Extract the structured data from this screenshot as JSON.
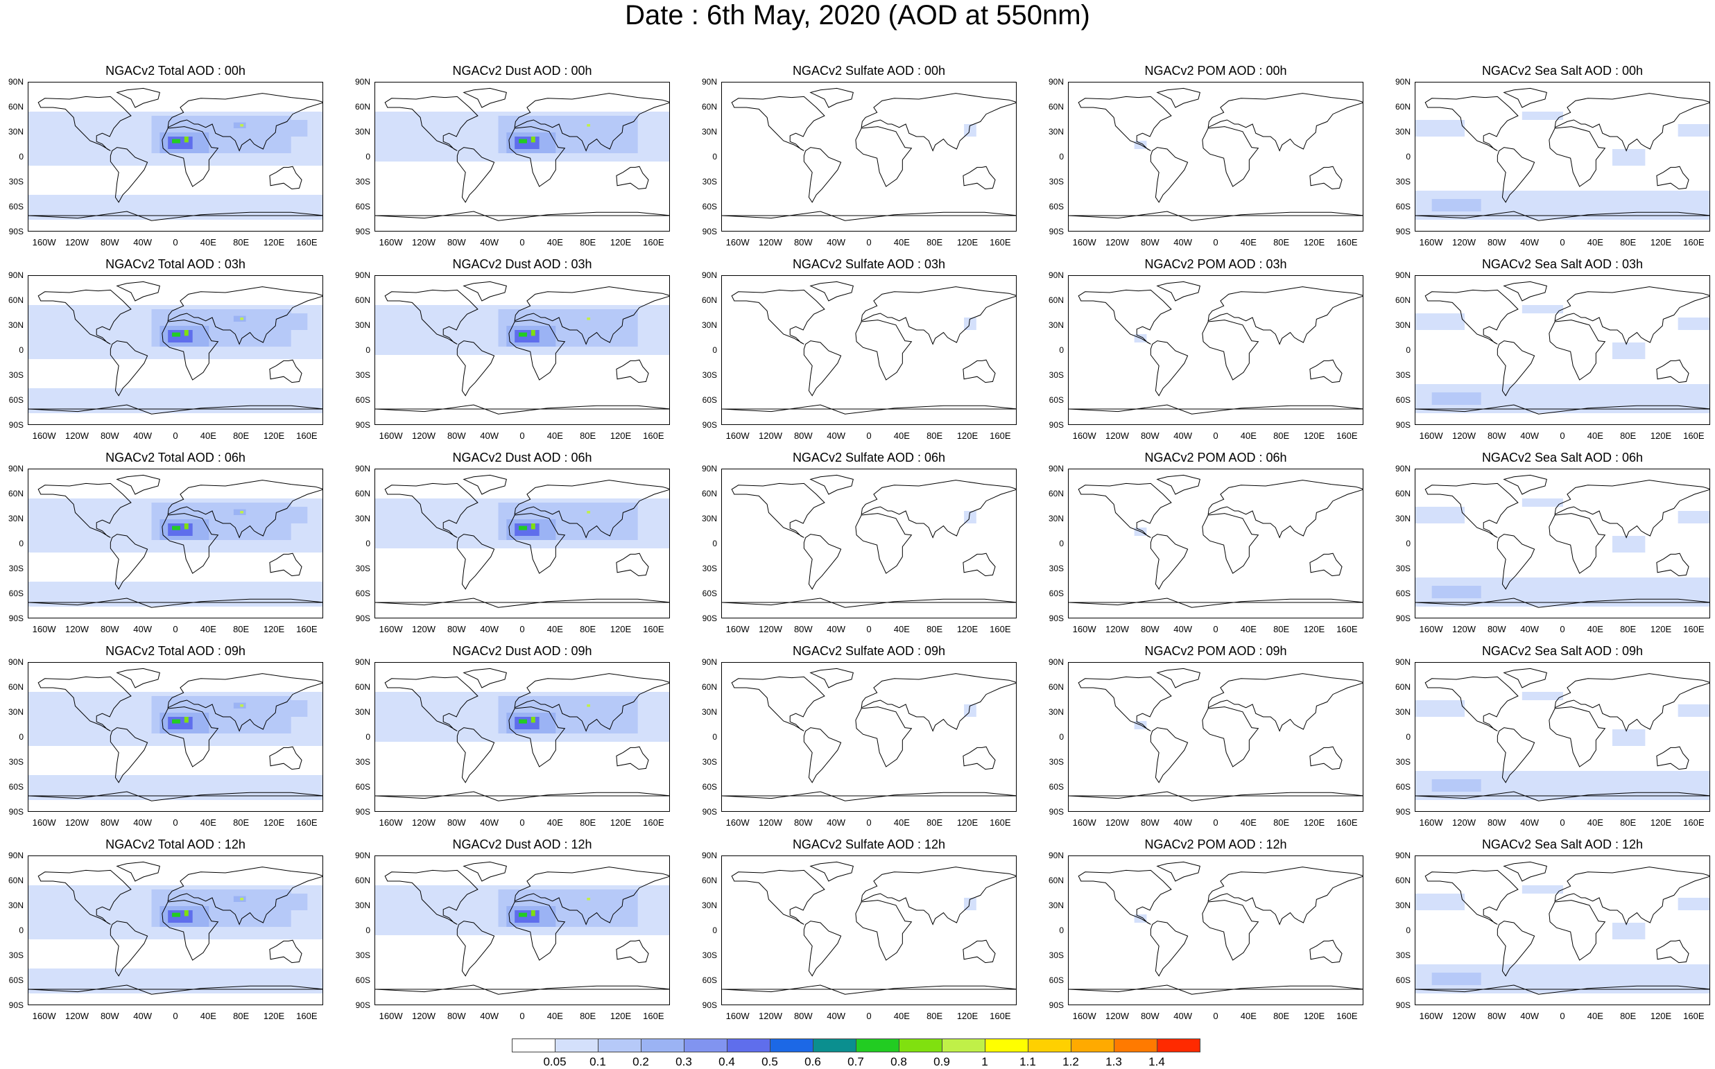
{
  "title": "Date : 6th May, 2020 (AOD at 550nm)",
  "panel_titles": [
    [
      "NGACv2 Total AOD : 00h",
      "NGACv2 Dust AOD : 00h",
      "NGACv2 Sulfate AOD : 00h",
      "NGACv2 POM AOD : 00h",
      "NGACv2 Sea Salt AOD : 00h"
    ],
    [
      "NGACv2 Total AOD : 03h",
      "NGACv2 Dust AOD : 03h",
      "NGACv2 Sulfate AOD : 03h",
      "NGACv2 POM AOD : 03h",
      "NGACv2 Sea Salt AOD : 03h"
    ],
    [
      "NGACv2 Total AOD : 06h",
      "NGACv2 Dust AOD : 06h",
      "NGACv2 Sulfate AOD : 06h",
      "NGACv2 POM AOD : 06h",
      "NGACv2 Sea Salt AOD : 06h"
    ],
    [
      "NGACv2 Total AOD : 09h",
      "NGACv2 Dust AOD : 09h",
      "NGACv2 Sulfate AOD : 09h",
      "NGACv2 POM AOD : 09h",
      "NGACv2 Sea Salt  AOD : 09h"
    ],
    [
      "NGACv2 Total AOD :  12h",
      "NGACv2 Dust AOD : 12h",
      "NGACv2 Sulfate AOD : 12h",
      "NGACv2 POM  AOD : 12h",
      "NGACv2 Sea Salt  AOD : 12h"
    ]
  ],
  "y_ticks": [
    "90N",
    "60N",
    "30N",
    "0",
    "30S",
    "60S",
    "90S"
  ],
  "x_ticks": [
    "160W",
    "120W",
    "80W",
    "40W",
    "0",
    "40E",
    "80E",
    "120E",
    "160E"
  ],
  "colorbar": {
    "colors": [
      "#ffffff",
      "#d4e0fb",
      "#b6c9f8",
      "#9bb3f4",
      "#8194f0",
      "#5f6eec",
      "#1c68e6",
      "#0b8f8f",
      "#22cc22",
      "#80e00f",
      "#c0f048",
      "#ffff00",
      "#ffd000",
      "#ffaa00",
      "#ff7a00",
      "#ff2a00"
    ],
    "labels": [
      "0.05",
      "0.1",
      "0.2",
      "0.3",
      "0.4",
      "0.5",
      "0.6",
      "0.7",
      "0.8",
      "0.9",
      "1",
      "1.1",
      "1.2",
      "1.3",
      "1.4"
    ]
  }
}
